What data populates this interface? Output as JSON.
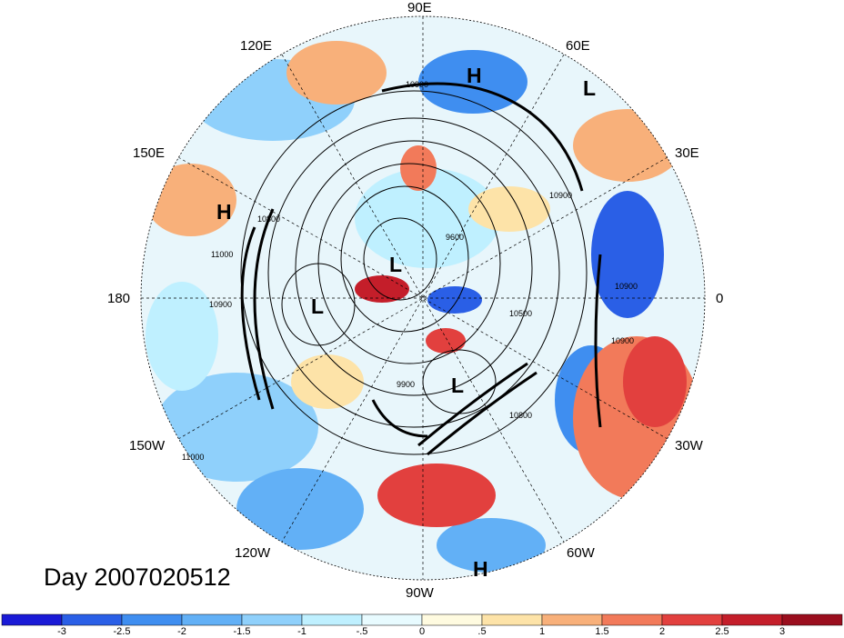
{
  "title": "Day 2007020512",
  "longitude_labels": {
    "e90": "90E",
    "e120": "120E",
    "e60": "60E",
    "e150": "150E",
    "e30": "30E",
    "d180": "180",
    "d0": "0",
    "w150": "150W",
    "w30": "30W",
    "w120": "120W",
    "w60": "60W",
    "w90": "90W"
  },
  "pressure_centers": [
    {
      "type": "H"
    },
    {
      "type": "L"
    },
    {
      "type": "H"
    },
    {
      "type": "L"
    },
    {
      "type": "L"
    },
    {
      "type": "L"
    },
    {
      "type": "H"
    }
  ],
  "contour_labels": [
    "10900",
    "10800",
    "10900",
    "9600",
    "11000",
    "10900",
    "10900",
    "10900",
    "10800",
    "9900",
    "11000",
    "10500"
  ],
  "colorbar": {
    "ticks": [
      "-3",
      "-2.5",
      "-2",
      "-1.5",
      "-1",
      "-.5",
      "0",
      ".5",
      "1",
      "1.5",
      "2",
      "2.5",
      "3"
    ],
    "colors": [
      "#1a1ad6",
      "#2a5fe6",
      "#3f8ef0",
      "#62b0f6",
      "#8fd0fb",
      "#bff0ff",
      "#e8fbff",
      "#fffbe0",
      "#fde3a8",
      "#f8b07a",
      "#f27a5a",
      "#e2403e",
      "#c41e2a",
      "#9a0e1e"
    ]
  }
}
